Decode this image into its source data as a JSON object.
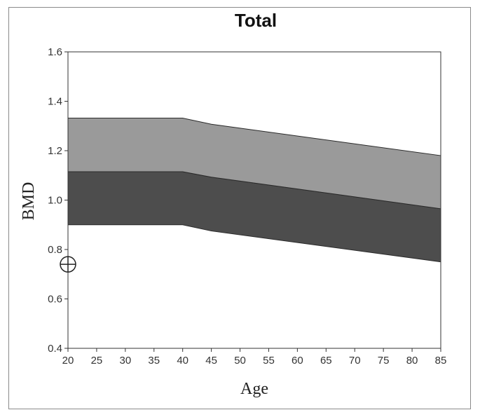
{
  "chart_data": {
    "type": "area",
    "title": "Total",
    "xlabel": "Age",
    "ylabel": "BMD",
    "xlim": [
      20,
      85
    ],
    "ylim": [
      0.4,
      1.6
    ],
    "xticks": [
      "20",
      "25",
      "30",
      "35",
      "40",
      "45",
      "50",
      "55",
      "60",
      "65",
      "70",
      "75",
      "80",
      "85"
    ],
    "yticks": [
      "0.4",
      "0.6",
      "0.8",
      "1.0",
      "1.2",
      "1.4",
      "1.6"
    ],
    "grid": false,
    "x": [
      20,
      40,
      45,
      85
    ],
    "bands": [
      {
        "lower": [
          0.9,
          0.9,
          0.875,
          0.75
        ],
        "upper": [
          1.115,
          1.115,
          1.093,
          0.965
        ],
        "color": "#4d4d4d"
      },
      {
        "lower": [
          1.115,
          1.115,
          1.093,
          0.965
        ],
        "upper": [
          1.332,
          1.332,
          1.307,
          1.18
        ],
        "color": "#9a9a9a"
      }
    ],
    "points": [
      {
        "x": 20,
        "y": 0.74,
        "marker": "crosshair-circle"
      }
    ]
  }
}
